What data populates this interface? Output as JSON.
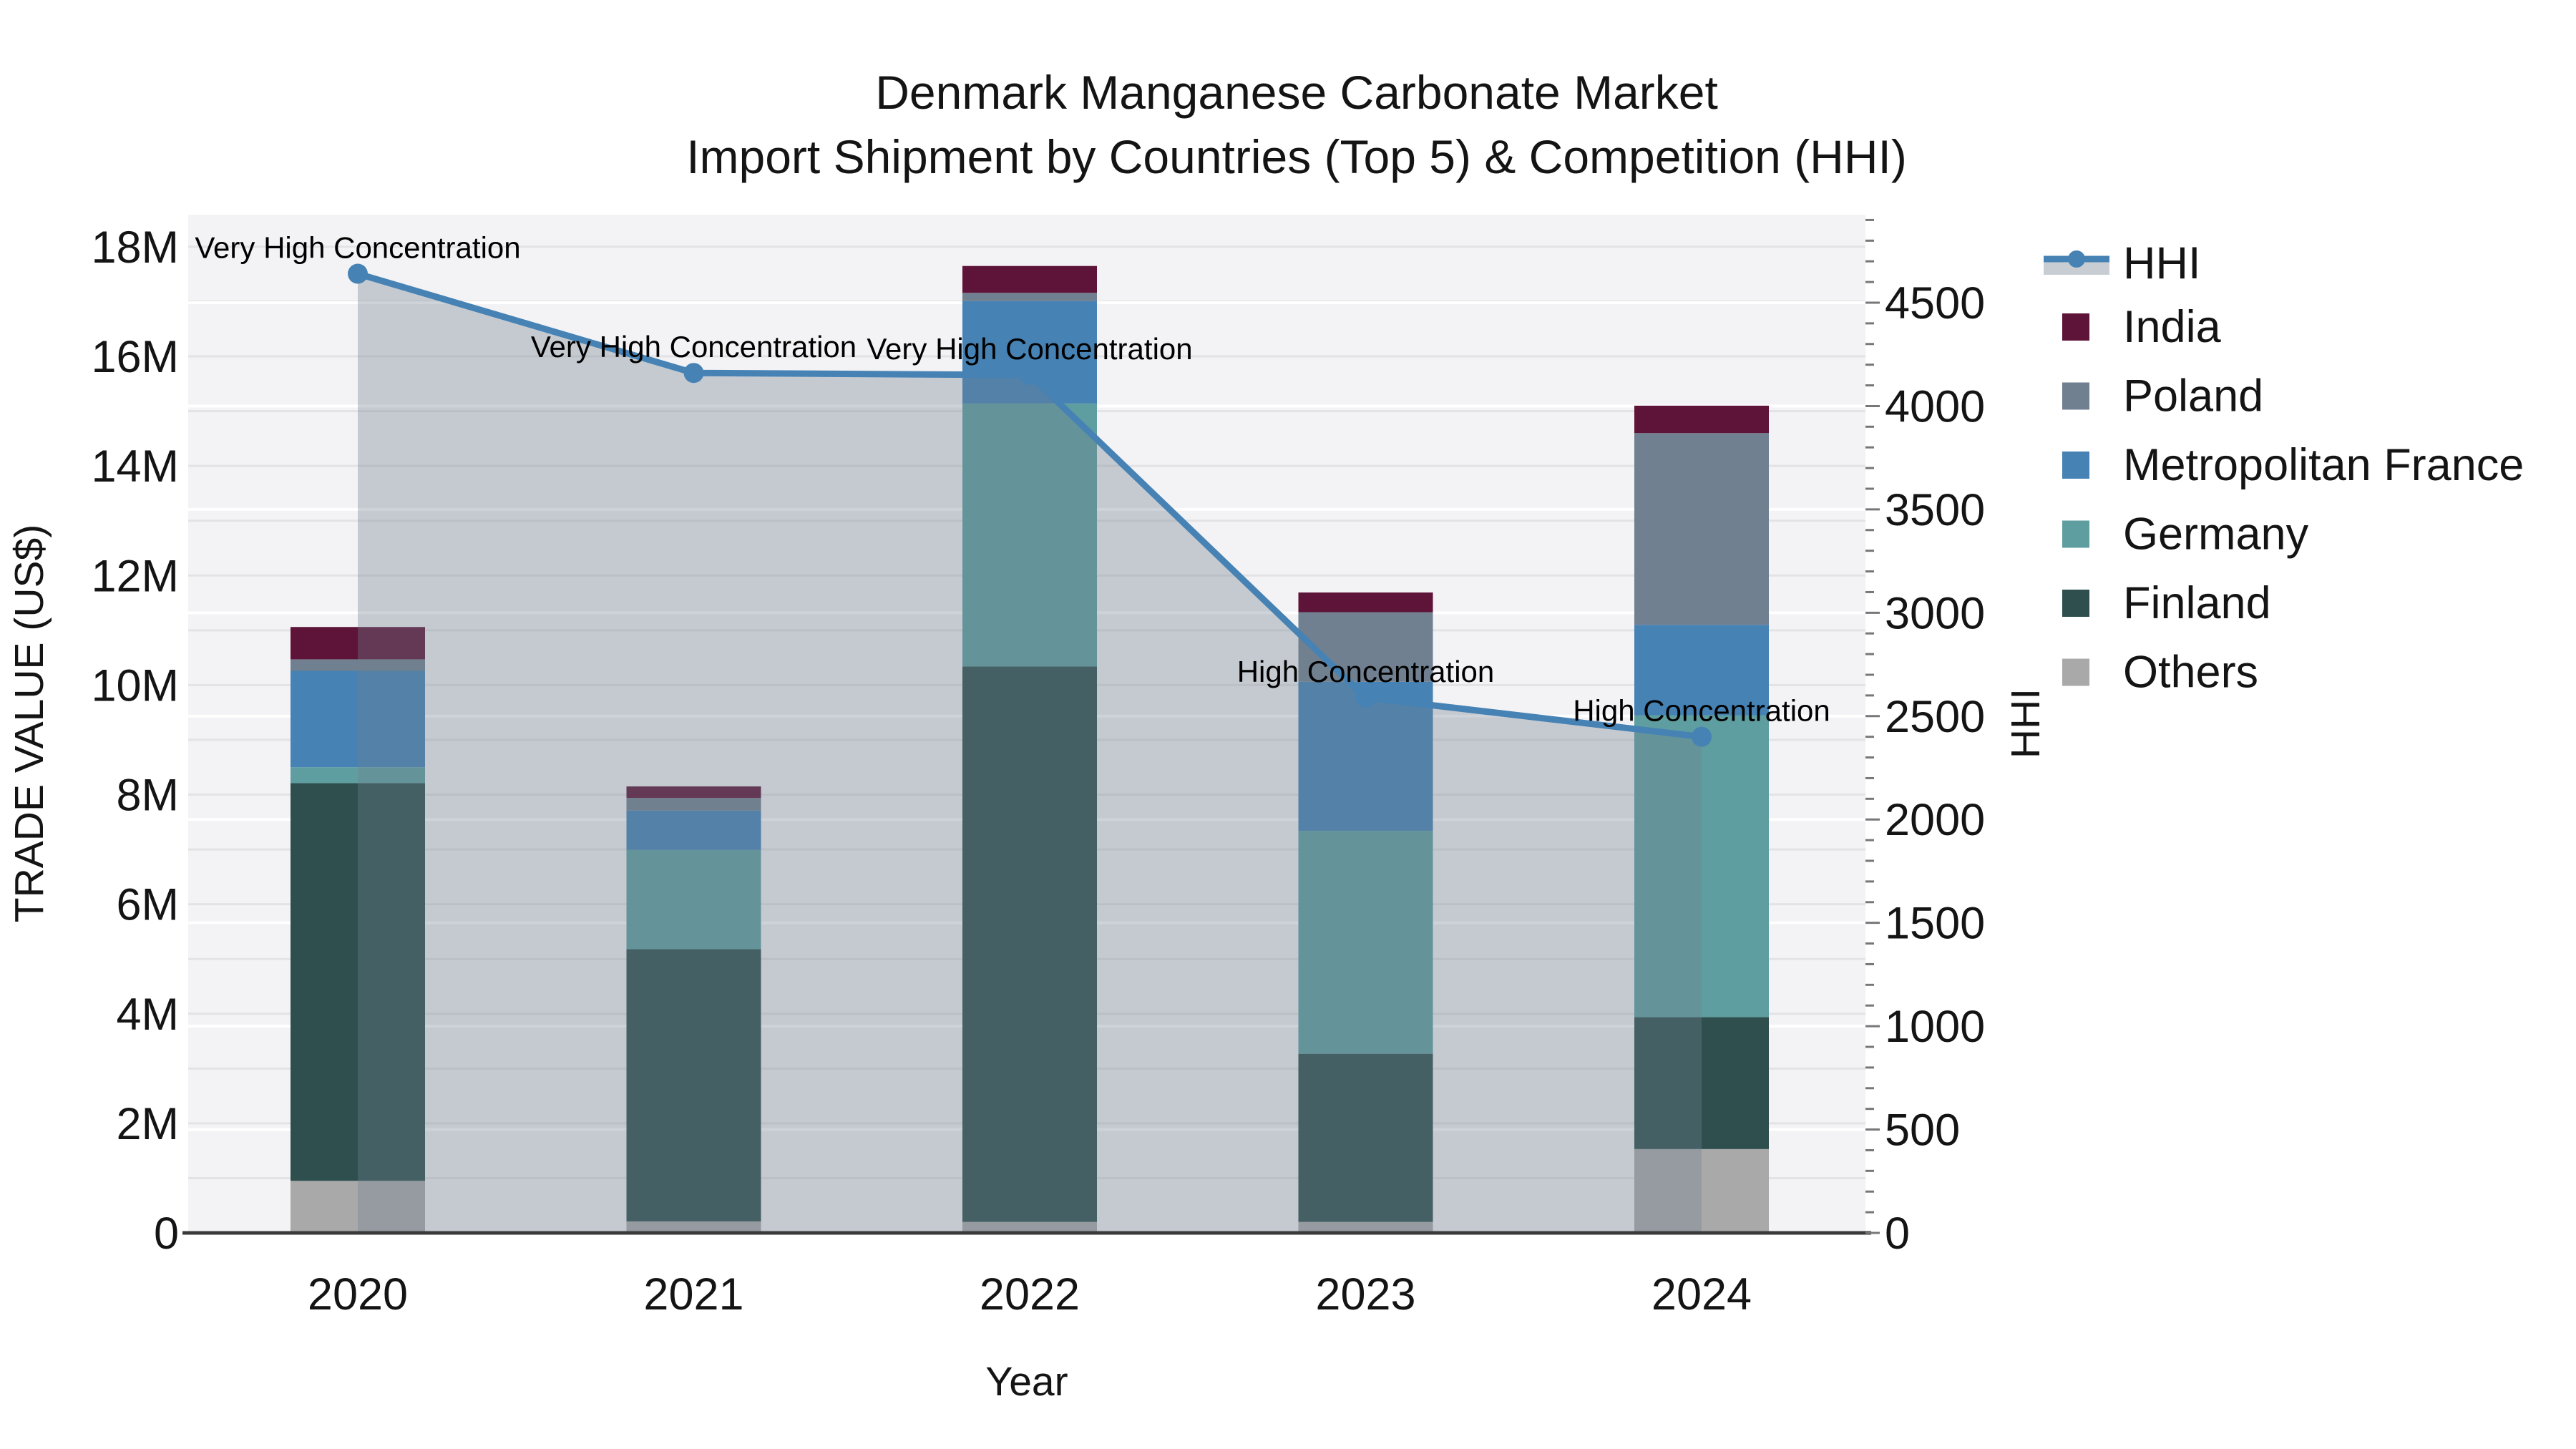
{
  "chart_data": {
    "type": "bar",
    "subtype": "stacked-bars-with-dual-axis-line-and-area",
    "title": "Denmark Manganese Carbonate Market",
    "subtitle": "Import Shipment by Countries (Top 5) & Competition (HHI)",
    "xlabel": "Year",
    "ylabel_left": "TRADE VALUE (US$)",
    "ylabel_right": "HHI",
    "categories": [
      "2020",
      "2021",
      "2022",
      "2023",
      "2024"
    ],
    "unit_left": "US$ millions",
    "series": [
      {
        "name": "Others",
        "color": "#A9A9A9",
        "values": [
          0.95,
          0.21,
          0.2,
          0.2,
          1.53
        ]
      },
      {
        "name": "Finland",
        "color": "#2F4F4F",
        "values": [
          7.26,
          4.97,
          10.14,
          3.07,
          2.41
        ]
      },
      {
        "name": "Germany",
        "color": "#5F9EA0",
        "values": [
          0.29,
          1.81,
          4.8,
          4.07,
          5.51
        ]
      },
      {
        "name": "Metropolitan France",
        "color": "#4682B4",
        "values": [
          1.76,
          0.72,
          1.87,
          2.72,
          1.65
        ]
      },
      {
        "name": "Poland",
        "color": "#708090",
        "values": [
          0.21,
          0.23,
          0.15,
          1.27,
          3.5
        ]
      },
      {
        "name": "India",
        "color": "#5E1338",
        "values": [
          0.59,
          0.21,
          0.49,
          0.36,
          0.5
        ]
      }
    ],
    "totals_millions": [
      11.06,
      8.15,
      17.65,
      11.69,
      15.1
    ],
    "line_series": {
      "name": "HHI",
      "color": "#4682B4",
      "area_fill": "rgba(112,128,144,0.35)",
      "values": [
        4640,
        4160,
        4150,
        2590,
        2400
      ]
    },
    "annotations": [
      "Very High Concentration",
      "Very High Concentration",
      "Very High Concentration",
      "High Concentration",
      "High Concentration"
    ],
    "yticks_left": {
      "values": [
        0,
        2,
        4,
        6,
        8,
        10,
        12,
        14,
        16,
        18
      ],
      "labels": [
        "0",
        "2M",
        "4M",
        "6M",
        "8M",
        "10M",
        "12M",
        "14M",
        "16M",
        "18M"
      ]
    },
    "ylim_left_millions": [
      0,
      18.6
    ],
    "yticks_right": {
      "values": [
        0,
        500,
        1000,
        1500,
        2000,
        2500,
        3000,
        3500,
        4000,
        4500
      ],
      "labels": [
        "0",
        "500",
        "1000",
        "1500",
        "2000",
        "2500",
        "3000",
        "3500",
        "4000",
        "4500"
      ]
    },
    "ylim_right": [
      0,
      4925
    ],
    "legend": [
      {
        "name": "HHI",
        "type": "line",
        "color": "#4682B4"
      },
      {
        "name": "India",
        "type": "square",
        "color": "#5E1338"
      },
      {
        "name": "Poland",
        "type": "square",
        "color": "#708090"
      },
      {
        "name": "Metropolitan France",
        "type": "square",
        "color": "#4682B4"
      },
      {
        "name": "Germany",
        "type": "square",
        "color": "#5F9EA0"
      },
      {
        "name": "Finland",
        "type": "square",
        "color": "#2F4F4F"
      },
      {
        "name": "Others",
        "type": "square",
        "color": "#A9A9A9"
      }
    ],
    "legend_position": "right",
    "grid": true,
    "style": {
      "plot_bg": "#f3f2f4",
      "fig_bg": "#ffffff",
      "grid_minor": "#e3e2e4",
      "grid_right": "rgba(255,255,255,0.95)",
      "axis_line": "#3a3a3a",
      "tick_mark": "#777777",
      "legend_band": "#c8cdd4",
      "text": "#141414"
    }
  }
}
